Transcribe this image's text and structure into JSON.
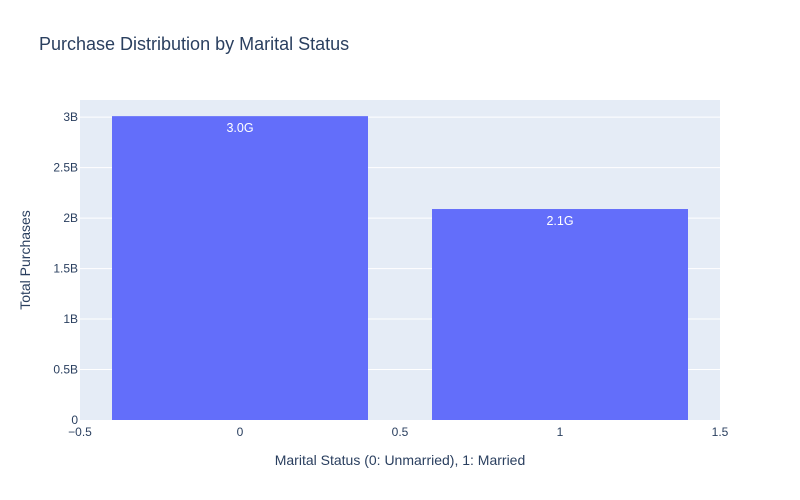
{
  "chart_data": {
    "type": "bar",
    "title": "Purchase Distribution by Marital Status",
    "xlabel": "Marital Status (0: Unmarried), 1: Married",
    "ylabel": "Total Purchases",
    "x": [
      0,
      1
    ],
    "values": [
      3010000000,
      2090000000
    ],
    "data_labels": [
      "3.0G",
      "2.1G"
    ],
    "bar_width": 0.8,
    "xlim": [
      -0.5,
      1.5
    ],
    "ylim": [
      0,
      3170000000
    ],
    "x_ticks": [
      -0.5,
      0,
      0.5,
      1,
      1.5
    ],
    "x_tick_labels": [
      "−0.5",
      "0",
      "0.5",
      "1",
      "1.5"
    ],
    "y_ticks": [
      0,
      500000000,
      1000000000,
      1500000000,
      2000000000,
      2500000000,
      3000000000
    ],
    "y_tick_labels": [
      "0",
      "0.5B",
      "1B",
      "1.5B",
      "2B",
      "2.5B",
      "3B"
    ],
    "grid": true,
    "colors": {
      "bar": "#636efa",
      "plot_bg": "#e5ecf6",
      "grid": "#ffffff",
      "text": "#2a3f5f"
    }
  }
}
